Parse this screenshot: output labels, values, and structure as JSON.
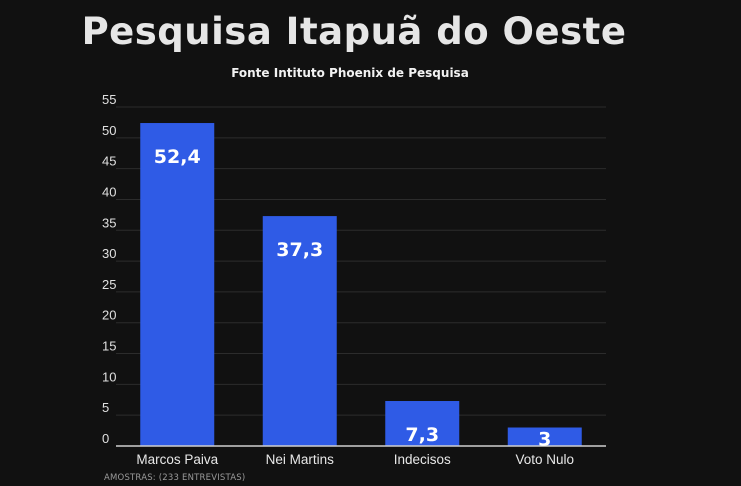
{
  "header": {
    "title": "Pesquisa Itapuã do Oeste",
    "subtitle": "Fonte Intituto Phoenix de Pesquisa"
  },
  "footnote": "AMOSTRAS: (233 ENTREVISTAS)",
  "colors": {
    "background": "#111111",
    "bar": "#2f5be6",
    "grid": "#2c2c2c",
    "axis": "#cfcfcf"
  },
  "chart_data": {
    "type": "bar",
    "categories": [
      "Marcos Paiva",
      "Nei Martins",
      "Indecisos",
      "Voto Nulo"
    ],
    "values": [
      52.4,
      37.3,
      7.3,
      3
    ],
    "data_labels": [
      "52,4",
      "37,3",
      "7,3",
      "3"
    ],
    "yticks": [
      "0",
      "5",
      "10",
      "15",
      "20",
      "25",
      "30",
      "35",
      "40",
      "45",
      "50",
      "55"
    ],
    "ylim": [
      0,
      55
    ],
    "grid": true,
    "legend": "none"
  }
}
